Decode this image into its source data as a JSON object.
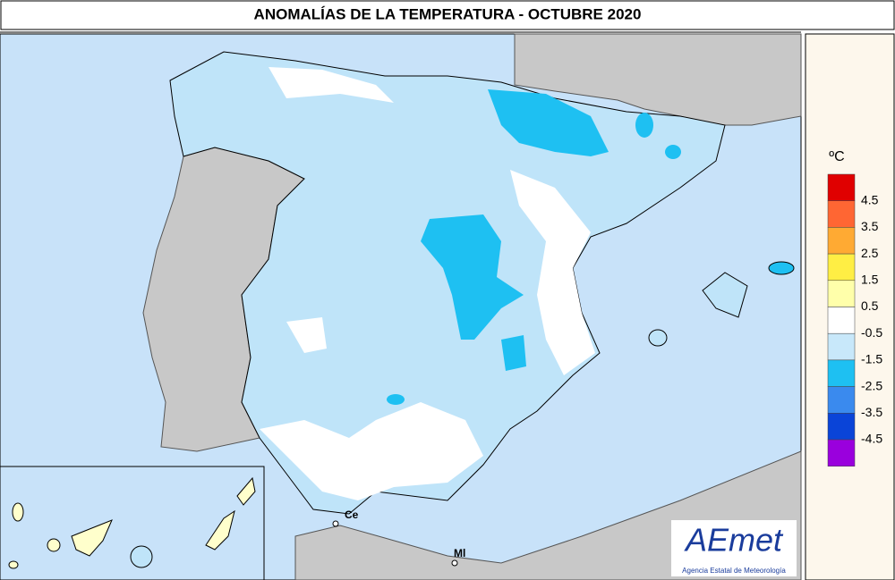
{
  "header": {
    "title": "ANOMALÍAS DE LA TEMPERATURA - OCTUBRE 2020"
  },
  "legend": {
    "unit": "ºC",
    "labels": [
      "4.5",
      "3.5",
      "2.5",
      "1.5",
      "0.5",
      "-0.5",
      "-1.5",
      "-2.5",
      "-3.5",
      "-4.5"
    ],
    "colors": [
      "#e00000",
      "#ff6633",
      "#ffaa33",
      "#ffee44",
      "#ffffaa",
      "#ffffff",
      "#c8e8fa",
      "#1ec0f2",
      "#3a8aee",
      "#0a44d8",
      "#9a00dd"
    ]
  },
  "map": {
    "places": [
      "Ce",
      "Ml"
    ]
  },
  "logo": {
    "name": "AEmet",
    "subtitle": "Agencia Estatal de Meteorología"
  }
}
